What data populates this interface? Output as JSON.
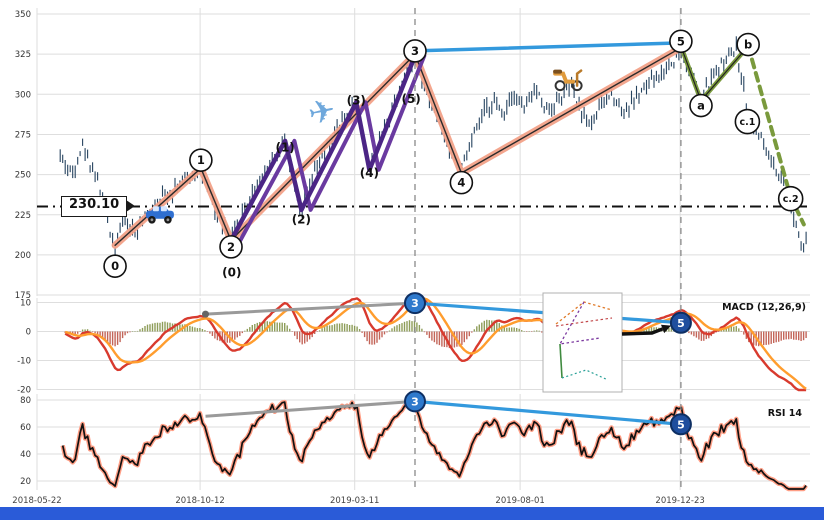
{
  "chrome": {
    "bottom_bar_color": "#2a5bd8"
  },
  "chart_data": {
    "type": "candlestick",
    "title": "",
    "x_axis": {
      "ticks": [
        {
          "label": "2018-05-22",
          "t": 0.0
        },
        {
          "label": "2018-10-12",
          "t": 0.211
        },
        {
          "label": "2019-03-11",
          "t": 0.411
        },
        {
          "label": "2019-08-01",
          "t": 0.625
        },
        {
          "label": "2019-12-23",
          "t": 0.832
        }
      ]
    },
    "event_lines_t": [
      0.489,
      0.833
    ],
    "price_panel": {
      "y_ticks": [
        350,
        325,
        300,
        275,
        250,
        225,
        200,
        175
      ],
      "ylim": [
        173,
        353
      ],
      "bars": 300,
      "bar_color": "#26435f",
      "hline": {
        "value": 230.1,
        "label": "230.10"
      },
      "waypoints": [
        [
          0.03,
          262
        ],
        [
          0.045,
          250
        ],
        [
          0.058,
          268
        ],
        [
          0.075,
          252
        ],
        [
          0.1,
          206
        ],
        [
          0.113,
          222
        ],
        [
          0.128,
          213
        ],
        [
          0.15,
          230
        ],
        [
          0.17,
          239
        ],
        [
          0.19,
          246
        ],
        [
          0.212,
          253
        ],
        [
          0.23,
          228
        ],
        [
          0.251,
          209
        ],
        [
          0.27,
          230
        ],
        [
          0.29,
          249
        ],
        [
          0.305,
          259
        ],
        [
          0.321,
          271
        ],
        [
          0.332,
          248
        ],
        [
          0.342,
          228
        ],
        [
          0.36,
          252
        ],
        [
          0.378,
          268
        ],
        [
          0.395,
          283
        ],
        [
          0.413,
          295
        ],
        [
          0.422,
          272
        ],
        [
          0.43,
          253
        ],
        [
          0.447,
          275
        ],
        [
          0.462,
          294
        ],
        [
          0.476,
          312
        ],
        [
          0.489,
          325
        ],
        [
          0.502,
          306
        ],
        [
          0.517,
          286
        ],
        [
          0.532,
          268
        ],
        [
          0.549,
          251
        ],
        [
          0.562,
          270
        ],
        [
          0.577,
          287
        ],
        [
          0.59,
          297
        ],
        [
          0.602,
          287
        ],
        [
          0.615,
          302
        ],
        [
          0.63,
          291
        ],
        [
          0.645,
          303
        ],
        [
          0.66,
          289
        ],
        [
          0.675,
          297
        ],
        [
          0.69,
          306
        ],
        [
          0.702,
          291
        ],
        [
          0.715,
          281
        ],
        [
          0.73,
          293
        ],
        [
          0.745,
          301
        ],
        [
          0.76,
          289
        ],
        [
          0.775,
          298
        ],
        [
          0.79,
          306
        ],
        [
          0.805,
          311
        ],
        [
          0.82,
          319
        ],
        [
          0.833,
          328
        ],
        [
          0.845,
          313
        ],
        [
          0.859,
          297
        ],
        [
          0.875,
          311
        ],
        [
          0.89,
          321
        ],
        [
          0.905,
          328
        ],
        [
          0.918,
          293
        ],
        [
          0.93,
          279
        ],
        [
          0.945,
          263
        ],
        [
          0.958,
          248
        ],
        [
          0.97,
          238
        ],
        [
          0.98,
          223
        ],
        [
          0.99,
          205
        ],
        [
          0.995,
          213
        ]
      ]
    },
    "elliott": {
      "main_wave_points": [
        [
          0.101,
          206
        ],
        [
          0.212,
          254
        ],
        [
          0.251,
          209
        ],
        [
          0.489,
          325
        ],
        [
          0.549,
          251
        ],
        [
          0.833,
          329
        ]
      ],
      "sub_wave_points": [
        [
          0.251,
          209
        ],
        [
          0.321,
          271
        ],
        [
          0.342,
          228
        ],
        [
          0.413,
          295
        ],
        [
          0.43,
          253
        ],
        [
          0.489,
          324
        ]
      ],
      "resistance_line": [
        [
          0.489,
          327
        ],
        [
          0.833,
          332
        ]
      ],
      "ending_solid": [
        [
          0.833,
          330
        ],
        [
          0.859,
          296
        ],
        [
          0.92,
          330
        ]
      ],
      "ending_dashed": [
        [
          0.92,
          330
        ],
        [
          0.975,
          236
        ],
        [
          0.992,
          219
        ]
      ],
      "main_labels": [
        {
          "label": "0",
          "t": 0.101,
          "p": 193
        },
        {
          "label": "1",
          "t": 0.212,
          "p": 259
        },
        {
          "label": "2",
          "t": 0.251,
          "p": 205
        },
        {
          "label": "3",
          "t": 0.489,
          "p": 327
        },
        {
          "label": "4",
          "t": 0.549,
          "p": 245
        },
        {
          "label": "5",
          "t": 0.833,
          "p": 333
        },
        {
          "label": "a",
          "t": 0.859,
          "p": 293
        },
        {
          "label": "b",
          "t": 0.92,
          "p": 331
        },
        {
          "label": "c.1",
          "t": 0.919,
          "p": 283
        },
        {
          "label": "c.2",
          "t": 0.975,
          "p": 235
        }
      ],
      "sub_labels": [
        {
          "label": "(0)",
          "t": 0.252,
          "p": 189
        },
        {
          "label": "(1)",
          "t": 0.321,
          "p": 267
        },
        {
          "label": "(2)",
          "t": 0.342,
          "p": 222
        },
        {
          "label": "(3)",
          "t": 0.413,
          "p": 296
        },
        {
          "label": "(4)",
          "t": 0.43,
          "p": 251
        },
        {
          "label": "(5)",
          "t": 0.484,
          "p": 297
        }
      ]
    },
    "pictograms": [
      {
        "name": "car-icon",
        "t": 0.159,
        "p": 225
      },
      {
        "name": "airplane-icon",
        "t": 0.369,
        "p": 288
      },
      {
        "name": "scooter-icon",
        "t": 0.687,
        "p": 311
      }
    ],
    "macd_panel": {
      "label": "MACD (12,26,9)",
      "params": {
        "fast": 12,
        "slow": 26,
        "signal": 9
      },
      "y_ticks": [
        10,
        0,
        -10,
        -20
      ],
      "markers": [
        {
          "label": "3",
          "t": 0.489,
          "v": 9.8
        },
        {
          "label": "5",
          "t": 0.833,
          "v": 3.0
        }
      ],
      "lead_line_start": {
        "t": 0.218,
        "v": 6.0
      }
    },
    "rsi_panel": {
      "label": "RSI 14",
      "period": 14,
      "y_ticks": [
        80,
        60,
        40,
        20
      ],
      "markers": [
        {
          "label": "3",
          "t": 0.489,
          "v": 79
        },
        {
          "label": "5",
          "t": 0.833,
          "v": 62
        }
      ],
      "lead_line_start": {
        "t": 0.218,
        "v": 68
      }
    },
    "colors": {
      "impulse_glow": "#f2a188",
      "impulse_core": "#2b2b2b",
      "subwave": "#4b2585",
      "subwave_shadow": "#6a3aa0",
      "resistance": "#3399dd",
      "ending": "#7a9a3d",
      "macd_line": "#d83a2e",
      "signal_line": "#ff9d2e",
      "hist_pos": "#7a8c3c",
      "hist_neg": "#b84a3c",
      "rsi_line": "#111111",
      "rsi_glow": "#ff9e85",
      "marker_blue": "#2e79cc",
      "marker_blue_dark": "#1f4e9e",
      "connector_gray": "#9a9a9a"
    }
  }
}
